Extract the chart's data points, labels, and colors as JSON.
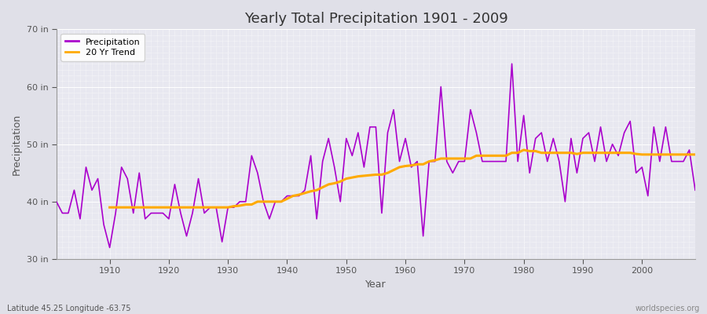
{
  "title": "Yearly Total Precipitation 1901 - 2009",
  "xlabel": "Year",
  "ylabel": "Precipitation",
  "footer_left": "Latitude 45.25 Longitude -63.75",
  "footer_right": "worldspecies.org",
  "ylim": [
    30,
    70
  ],
  "yticks": [
    30,
    40,
    50,
    60,
    70
  ],
  "ytick_labels": [
    "30 in",
    "40 in",
    "50 in",
    "60 in",
    "70 in"
  ],
  "xlim": [
    1901,
    2009
  ],
  "xticks": [
    1910,
    1920,
    1930,
    1940,
    1950,
    1960,
    1970,
    1980,
    1990,
    2000
  ],
  "precip_color": "#aa00cc",
  "trend_color": "#ffaa00",
  "bg_color": "#e0e0e8",
  "plot_bg_color": "#e8e8f0",
  "grid_color": "#ffffff",
  "years": [
    1901,
    1902,
    1903,
    1904,
    1905,
    1906,
    1907,
    1908,
    1909,
    1910,
    1911,
    1912,
    1913,
    1914,
    1915,
    1916,
    1917,
    1918,
    1919,
    1920,
    1921,
    1922,
    1923,
    1924,
    1925,
    1926,
    1927,
    1928,
    1929,
    1930,
    1931,
    1932,
    1933,
    1934,
    1935,
    1936,
    1937,
    1938,
    1939,
    1940,
    1941,
    1942,
    1943,
    1944,
    1945,
    1946,
    1947,
    1948,
    1949,
    1950,
    1951,
    1952,
    1953,
    1954,
    1955,
    1956,
    1957,
    1958,
    1959,
    1960,
    1961,
    1962,
    1963,
    1964,
    1965,
    1966,
    1967,
    1968,
    1969,
    1970,
    1971,
    1972,
    1973,
    1974,
    1975,
    1976,
    1977,
    1978,
    1979,
    1980,
    1981,
    1982,
    1983,
    1984,
    1985,
    1986,
    1987,
    1988,
    1989,
    1990,
    1991,
    1992,
    1993,
    1994,
    1995,
    1996,
    1997,
    1998,
    1999,
    2000,
    2001,
    2002,
    2003,
    2004,
    2005,
    2006,
    2007,
    2008,
    2009
  ],
  "precip": [
    40,
    38,
    38,
    42,
    37,
    46,
    42,
    44,
    36,
    32,
    38,
    46,
    44,
    38,
    45,
    37,
    38,
    38,
    38,
    37,
    43,
    38,
    34,
    38,
    44,
    38,
    39,
    39,
    33,
    39,
    39,
    40,
    40,
    48,
    45,
    40,
    37,
    40,
    40,
    41,
    41,
    41,
    42,
    48,
    37,
    47,
    51,
    46,
    40,
    51,
    48,
    52,
    46,
    53,
    53,
    38,
    52,
    56,
    47,
    51,
    46,
    47,
    34,
    47,
    47,
    60,
    47,
    45,
    47,
    47,
    56,
    52,
    47,
    47,
    47,
    47,
    47,
    64,
    47,
    55,
    45,
    51,
    52,
    47,
    51,
    47,
    40,
    51,
    45,
    51,
    52,
    47,
    53,
    47,
    50,
    48,
    52,
    54,
    45,
    46,
    41,
    53,
    47,
    53,
    47,
    47,
    47,
    49,
    42
  ],
  "trend": [
    null,
    null,
    null,
    null,
    null,
    null,
    null,
    null,
    null,
    39,
    39,
    39,
    39,
    39,
    39,
    39,
    39,
    39,
    39,
    39,
    39,
    39,
    39,
    39,
    39,
    39,
    39,
    39,
    39,
    39,
    39.2,
    39.3,
    39.5,
    39.5,
    40,
    40,
    40,
    40,
    40,
    40.5,
    41,
    41.2,
    41.5,
    41.8,
    42,
    42.5,
    43,
    43.2,
    43.5,
    44,
    44.2,
    44.4,
    44.5,
    44.6,
    44.7,
    44.7,
    45,
    45.5,
    46,
    46.2,
    46.3,
    46.5,
    46.5,
    47,
    47.2,
    47.5,
    47.5,
    47.5,
    47.5,
    47.5,
    47.5,
    48,
    48,
    48,
    48,
    48,
    48,
    48.5,
    48.5,
    49,
    48.8,
    48.8,
    48.5,
    48.5,
    48.5,
    48.5,
    48.5,
    48.5,
    48.3,
    48.5,
    48.5,
    48.5,
    48.5,
    48.5,
    48.5,
    48.5,
    48.5,
    48.5,
    48.3,
    48.2,
    48.2,
    48.2,
    48.2,
    48.2,
    48.2,
    48.2,
    48.2,
    48.2,
    48.2
  ]
}
